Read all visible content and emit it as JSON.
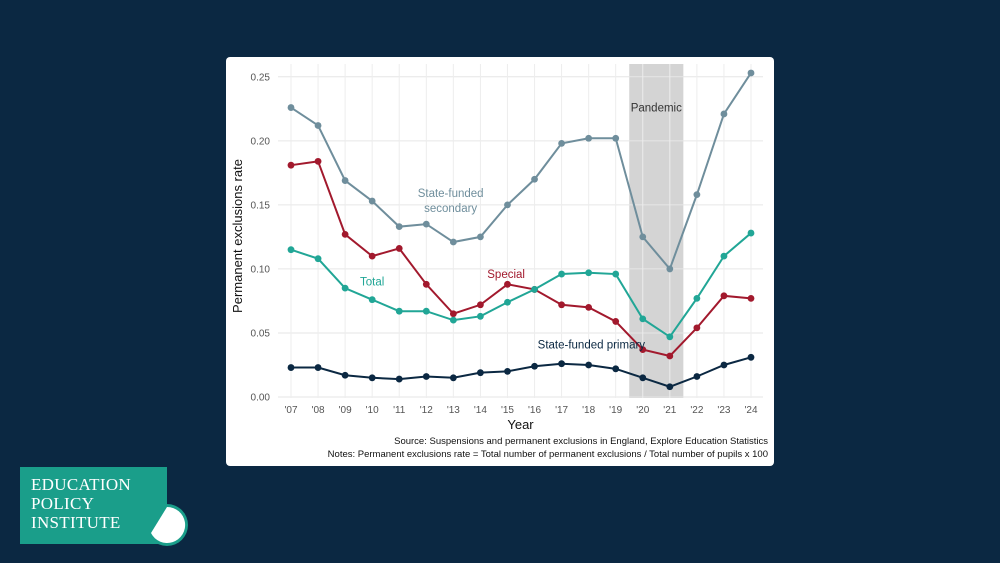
{
  "chart_data": {
    "type": "line",
    "xlabel": "Year",
    "ylabel": "Permanent exclusions rate",
    "categories": [
      "'07",
      "'08",
      "'09",
      "'10",
      "'11",
      "'12",
      "'13",
      "'14",
      "'15",
      "'16",
      "'17",
      "'18",
      "'19",
      "'20",
      "'21",
      "'22",
      "'23",
      "'24"
    ],
    "ylim": [
      0,
      0.26
    ],
    "yticks": [
      "0.00",
      "0.05",
      "0.10",
      "0.15",
      "0.20",
      "0.25"
    ],
    "grid": true,
    "legend": "none (direct labels)",
    "series": [
      {
        "name": "State-funded secondary",
        "label_lines": [
          "State-funded",
          "secondary"
        ],
        "color": "#6f8e9c",
        "values": [
          0.226,
          0.212,
          0.169,
          0.153,
          0.133,
          0.135,
          0.121,
          0.125,
          0.15,
          0.17,
          0.198,
          0.202,
          0.202,
          0.125,
          0.1,
          0.158,
          0.221,
          0.253
        ]
      },
      {
        "name": "Special",
        "label_lines": [
          "Special"
        ],
        "color": "#a2192d",
        "values": [
          0.181,
          0.184,
          0.127,
          0.11,
          0.116,
          0.088,
          0.065,
          0.072,
          0.088,
          0.084,
          0.072,
          0.07,
          0.059,
          0.037,
          0.032,
          0.054,
          0.079,
          0.077
        ]
      },
      {
        "name": "Total",
        "label_lines": [
          "Total"
        ],
        "color": "#21a696",
        "values": [
          0.115,
          0.108,
          0.085,
          0.076,
          0.067,
          0.067,
          0.06,
          0.063,
          0.074,
          0.084,
          0.096,
          0.097,
          0.096,
          0.061,
          0.047,
          0.077,
          0.11,
          0.128
        ]
      },
      {
        "name": "State-funded primary",
        "label_lines": [
          "State-funded primary"
        ],
        "color": "#0b2842",
        "values": [
          0.023,
          0.023,
          0.017,
          0.015,
          0.014,
          0.016,
          0.015,
          0.019,
          0.02,
          0.024,
          0.026,
          0.025,
          0.022,
          0.015,
          0.008,
          0.016,
          0.025,
          0.031
        ]
      }
    ],
    "annotations": [
      {
        "text": "Pandemic",
        "shaded_from": "'19",
        "shaded_to": "'21",
        "shade_color": "#d4d4d4"
      }
    ]
  },
  "footer": {
    "source": "Source: Suspensions and permanent exclusions in England, Explore Education Statistics",
    "notes": "Notes: Permanent exclusions rate = Total number of permanent exclusions / Total number of pupils x 100"
  },
  "logo": {
    "lines": [
      "EDUCATION",
      "POLICY",
      "INSTITUTE"
    ],
    "bg_color": "#1a9e8a"
  },
  "colors": {
    "page_background": "#0b2842",
    "card_background": "#ffffff"
  }
}
